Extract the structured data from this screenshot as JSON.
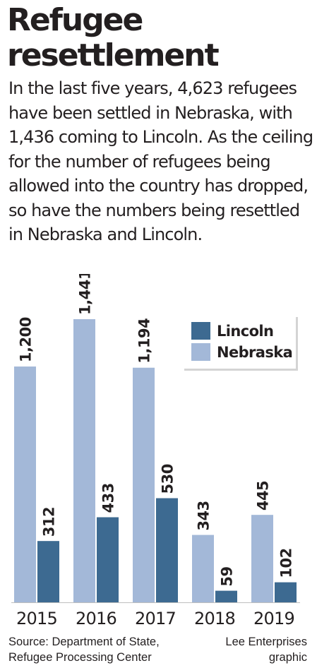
{
  "title": [
    "Refugee",
    "resettlement"
  ],
  "intro": "In the last five years, 4,623 refugees have been settled in Nebraska, with 1,436 coming to Lincoln. As the ceiling for the number of refugees being allowed into the country has dropped, so have the numbers being resettled in Nebraska and Lincoln.",
  "source": [
    "Source: Department of State,",
    "Refugee Processing Center"
  ],
  "credit": [
    "Lee Enterprises",
    "graphic"
  ],
  "colors": {
    "lincoln": "#3d6a91",
    "nebraska": "#a3b8d8",
    "text": "#231f20",
    "baseline": "#bfbfbf"
  },
  "chart_data": {
    "type": "bar",
    "categories": [
      "2015",
      "2016",
      "2017",
      "2018",
      "2019"
    ],
    "series": [
      {
        "name": "Nebraska",
        "values": [
          1200,
          1441,
          1194,
          343,
          445
        ],
        "labels": [
          "1,200",
          "1,441",
          "1,194",
          "343",
          "445"
        ]
      },
      {
        "name": "Lincoln",
        "values": [
          312,
          433,
          530,
          59,
          102
        ],
        "labels": [
          "312",
          "433",
          "530",
          "59",
          "102"
        ]
      }
    ],
    "legend": {
      "position": "top-right",
      "order": [
        "Lincoln",
        "Nebraska"
      ]
    },
    "ylim": [
      0,
      1441
    ],
    "grid": false,
    "data_labels": "rotated above bars",
    "title": "",
    "xlabel": "",
    "ylabel": ""
  }
}
